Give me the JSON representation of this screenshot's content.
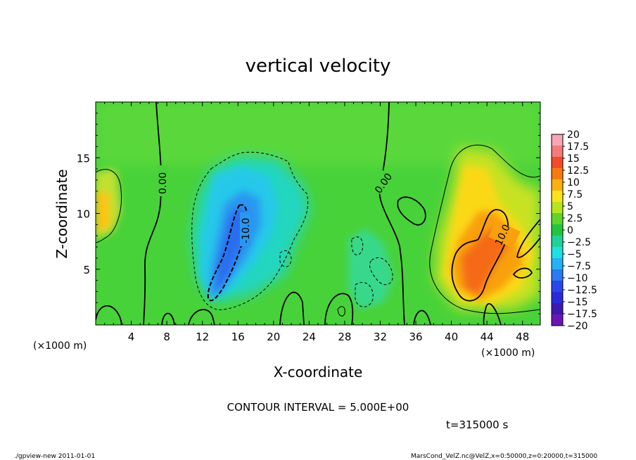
{
  "chart_data": {
    "type": "heatmap",
    "title": "vertical velocity",
    "xlabel": "X-coordinate",
    "ylabel": "Z-coordinate",
    "x_unit": "(×1000 m)",
    "y_unit": "(×1000 m)",
    "xlim": [
      0,
      50
    ],
    "ylim": [
      0,
      20
    ],
    "xticks": [
      4,
      8,
      12,
      16,
      20,
      24,
      28,
      32,
      36,
      40,
      44,
      48
    ],
    "yticks": [
      5,
      10,
      15
    ],
    "contour_interval_text": "CONTOUR INTERVAL = 5.000E+00",
    "time_text": "t=315000 s",
    "contour_labels": [
      "0.00",
      "-10.0",
      "0.00",
      "10.0"
    ],
    "colorbar": {
      "levels": [
        "20",
        "17.5",
        "15",
        "12.5",
        "10",
        "7.5",
        "5",
        "2.5",
        "0",
        "−2.5",
        "−5",
        "−7.5",
        "−10",
        "−12.5",
        "−15",
        "−17.5",
        "−20"
      ],
      "colors": [
        "#f7a6b6",
        "#f57a7a",
        "#f54a2a",
        "#f77a10",
        "#fbb010",
        "#fbe21a",
        "#b8e41e",
        "#5fd42a",
        "#22c63e",
        "#20d29a",
        "#1fe0e0",
        "#23b2f4",
        "#2a7af2",
        "#2a46ea",
        "#2a2ad8",
        "#3a1ab0",
        "#6a16b4"
      ]
    },
    "features": [
      {
        "kind": "updraft",
        "x": 42,
        "z": 5,
        "value": 12
      },
      {
        "kind": "updraft",
        "x": 44,
        "z": 9,
        "value": 11
      },
      {
        "kind": "updraft",
        "x": 0.5,
        "z": 10,
        "value": 9
      },
      {
        "kind": "downdraft",
        "x": 15.5,
        "z": 7.5,
        "value": -13
      },
      {
        "kind": "downdraft",
        "x": 20,
        "z": 12,
        "value": -6
      },
      {
        "kind": "downdraft",
        "x": 30,
        "z": 5,
        "value": -3
      }
    ]
  },
  "footer": {
    "left": "./gpview-new   2011-01-01",
    "right": "MarsCond_VelZ.nc@VelZ,x=0:50000,z=0:20000,t=315000"
  }
}
